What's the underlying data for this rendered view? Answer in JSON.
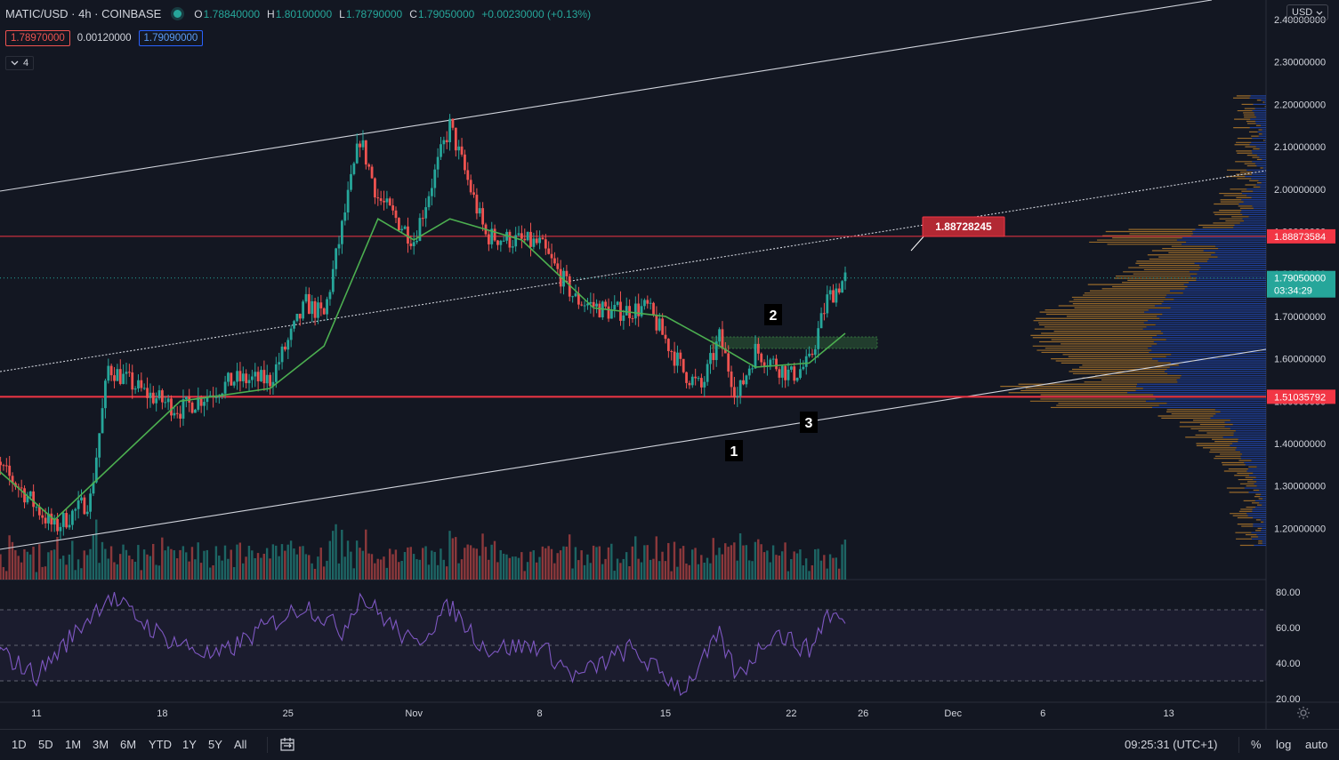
{
  "header": {
    "symbol": "MATIC/USD · 4h · COINBASE",
    "open_label": "O",
    "open": "1.78840000",
    "high_label": "H",
    "high": "1.80100000",
    "low_label": "L",
    "low": "1.78790000",
    "close_label": "C",
    "close": "1.79050000",
    "change": "+0.00230000 (+0.13%)",
    "sell_price": "1.78970000",
    "spread": "0.00120000",
    "buy_price": "1.79090000",
    "indicator_count": "4"
  },
  "currency_button": "USD",
  "colors": {
    "background": "#131722",
    "up": "#26a69a",
    "down": "#ef5350",
    "ma": "#4caf50",
    "rsi": "#7e57c2",
    "level": "#f23645",
    "profile_up": "#2962ff",
    "profile_down": "#f0a030"
  },
  "chart_data": [
    {
      "type": "candlestick",
      "symbol": "MATIC/USD",
      "interval": "4h",
      "y_axis_ticks": [
        "2.40000000",
        "2.30000000",
        "2.20000000",
        "2.10000000",
        "2.00000000",
        "1.90000000",
        "1.80000000",
        "1.70000000",
        "1.60000000",
        "1.50000000",
        "1.40000000",
        "1.30000000",
        "1.20000000"
      ],
      "x_axis_ticks": [
        "11",
        "18",
        "25",
        "Nov",
        "8",
        "15",
        "22",
        "26",
        "Dec",
        "6",
        "13"
      ],
      "ylim": [
        1.14,
        2.43
      ],
      "approx_price_path": [
        {
          "date": "Oct 8",
          "price": 1.38
        },
        {
          "date": "Oct 10",
          "price": 1.3
        },
        {
          "date": "Oct 12",
          "price": 1.2
        },
        {
          "date": "Oct 14",
          "price": 1.27
        },
        {
          "date": "Oct 15",
          "price": 1.58
        },
        {
          "date": "Oct 17",
          "price": 1.52
        },
        {
          "date": "Oct 19",
          "price": 1.48
        },
        {
          "date": "Oct 22",
          "price": 1.55
        },
        {
          "date": "Oct 24",
          "price": 1.55
        },
        {
          "date": "Oct 26",
          "price": 1.73
        },
        {
          "date": "Oct 27",
          "price": 1.7
        },
        {
          "date": "Oct 29",
          "price": 2.12
        },
        {
          "date": "Oct 30",
          "price": 1.98
        },
        {
          "date": "Nov 1",
          "price": 1.88
        },
        {
          "date": "Nov 3",
          "price": 2.15
        },
        {
          "date": "Nov 5",
          "price": 1.89
        },
        {
          "date": "Nov 8",
          "price": 1.87
        },
        {
          "date": "Nov 10",
          "price": 1.74
        },
        {
          "date": "Nov 12",
          "price": 1.71
        },
        {
          "date": "Nov 14",
          "price": 1.72
        },
        {
          "date": "Nov 16",
          "price": 1.57
        },
        {
          "date": "Nov 17",
          "price": 1.53
        },
        {
          "date": "Nov 18",
          "price": 1.65
        },
        {
          "date": "Nov 19",
          "price": 1.51
        },
        {
          "date": "Nov 20",
          "price": 1.62
        },
        {
          "date": "Nov 22",
          "price": 1.56
        },
        {
          "date": "Nov 23",
          "price": 1.59
        },
        {
          "date": "Nov 24",
          "price": 1.74
        },
        {
          "date": "Nov 25",
          "price": 1.79
        }
      ],
      "moving_average": [
        {
          "date": "Oct 8",
          "value": 1.37
        },
        {
          "date": "Oct 12",
          "value": 1.22
        },
        {
          "date": "Oct 16",
          "value": 1.38
        },
        {
          "date": "Oct 19",
          "value": 1.5
        },
        {
          "date": "Oct 24",
          "value": 1.53
        },
        {
          "date": "Oct 27",
          "value": 1.63
        },
        {
          "date": "Oct 30",
          "value": 1.93
        },
        {
          "date": "Nov 1",
          "value": 1.88
        },
        {
          "date": "Nov 3",
          "value": 1.93
        },
        {
          "date": "Nov 7",
          "value": 1.88
        },
        {
          "date": "Nov 11",
          "value": 1.72
        },
        {
          "date": "Nov 15",
          "value": 1.7
        },
        {
          "date": "Nov 18",
          "value": 1.63
        },
        {
          "date": "Nov 20",
          "value": 1.58
        },
        {
          "date": "Nov 23",
          "value": 1.59
        },
        {
          "date": "Nov 25",
          "value": 1.66
        }
      ],
      "current_price": "1.79050000",
      "countdown": "03:34:29",
      "horizontal_levels": [
        {
          "label": "1.88873584"
        },
        {
          "label": "1.51035792"
        }
      ],
      "price_callout": "1.88728245",
      "annotations": [
        "1",
        "2",
        "3"
      ],
      "has_volume_profile": true,
      "has_volume_bars": true
    },
    {
      "type": "line",
      "indicator": "RSI",
      "y_axis_ticks": [
        "80.00",
        "60.00",
        "40.00",
        "20.00"
      ],
      "ylim": [
        20,
        82
      ],
      "bands": [
        70,
        50,
        30
      ],
      "approx_values": [
        {
          "date": "Oct 8",
          "value": 52
        },
        {
          "date": "Oct 11",
          "value": 33
        },
        {
          "date": "Oct 15",
          "value": 78
        },
        {
          "date": "Oct 18",
          "value": 55
        },
        {
          "date": "Oct 21",
          "value": 43
        },
        {
          "date": "Oct 24",
          "value": 62
        },
        {
          "date": "Oct 26",
          "value": 73
        },
        {
          "date": "Oct 28",
          "value": 58
        },
        {
          "date": "Oct 29",
          "value": 78
        },
        {
          "date": "Nov 1",
          "value": 50
        },
        {
          "date": "Nov 3",
          "value": 72
        },
        {
          "date": "Nov 5",
          "value": 48
        },
        {
          "date": "Nov 8",
          "value": 50
        },
        {
          "date": "Nov 10",
          "value": 32
        },
        {
          "date": "Nov 13",
          "value": 48
        },
        {
          "date": "Nov 16",
          "value": 25
        },
        {
          "date": "Nov 18",
          "value": 55
        },
        {
          "date": "Nov 19",
          "value": 32
        },
        {
          "date": "Nov 21",
          "value": 58
        },
        {
          "date": "Nov 23",
          "value": 47
        },
        {
          "date": "Nov 24",
          "value": 68
        },
        {
          "date": "Nov 25",
          "value": 63
        }
      ]
    }
  ],
  "toolbar": {
    "timeframes": [
      "1D",
      "5D",
      "1M",
      "3M",
      "6M",
      "YTD",
      "1Y",
      "5Y",
      "All"
    ],
    "clock": "09:25:31 (UTC+1)",
    "percent": "%",
    "log": "log",
    "auto": "auto"
  }
}
